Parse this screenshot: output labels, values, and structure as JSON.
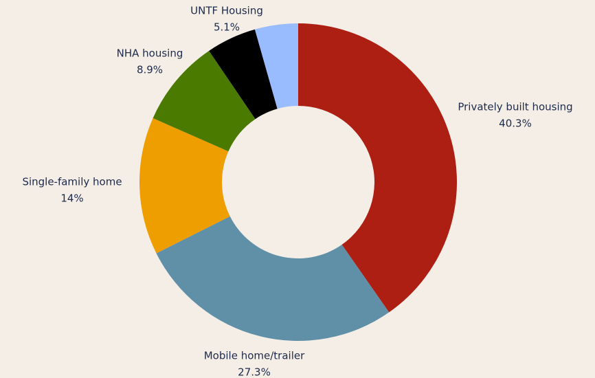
{
  "chart_data": {
    "type": "donut",
    "categories": [
      "Privately built housing",
      "Mobile home/trailer",
      "Single-family home",
      "NHA housing",
      "UNTF Housing",
      null
    ],
    "values": [
      40.3,
      27.3,
      14,
      8.9,
      5.1,
      4.4
    ],
    "value_labels": [
      "40.3%",
      "27.3%",
      "14%",
      "8.9%",
      "5.1%",
      null
    ],
    "colors": [
      "#ad1f12",
      "#6090a8",
      "#ef9e00",
      "#4a7a00",
      "#000000",
      "#99bbff"
    ]
  }
}
